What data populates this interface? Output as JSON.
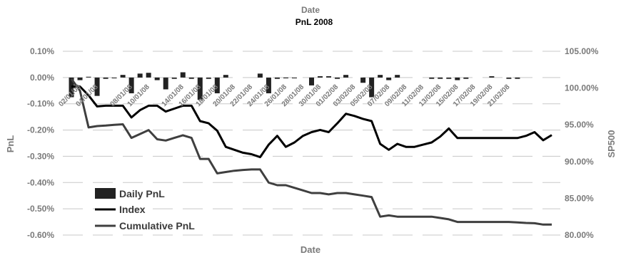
{
  "chart_data": {
    "type": "bar+line",
    "title": "PnL 2008",
    "top_label": "Date",
    "xlabel": "Date",
    "ylabel_left": "PnL",
    "ylabel_right": "SP500",
    "ylim_left": [
      -0.6,
      0.1
    ],
    "ylim_right": [
      80.0,
      105.0
    ],
    "left_ticks": [
      "0.10%",
      "0.00%",
      "-0.10%",
      "-0.20%",
      "-0.30%",
      "-0.40%",
      "-0.50%",
      "-0.60%"
    ],
    "left_tick_values": [
      0.1,
      0.0,
      -0.1,
      -0.2,
      -0.3,
      -0.4,
      -0.5,
      -0.6
    ],
    "right_ticks": [
      "105.00%",
      "100.00%",
      "95.00%",
      "90.00%",
      "85.00%",
      "80.00%"
    ],
    "right_tick_values": [
      105,
      100,
      95,
      90,
      85,
      80
    ],
    "x_ticks": [
      "02/01/08",
      "04/01/08",
      "08/01/08",
      "10/01/08",
      "14/01/08",
      "16/01/08",
      "18/01/08",
      "20/01/08",
      "22/01/08",
      "24/01/08",
      "26/01/08",
      "28/01/08",
      "30/01/08",
      "01/02/08",
      "03/02/08",
      "05/02/08",
      "07/02/08",
      "09/02/08",
      "11/02/08",
      "13/02/08",
      "15/02/08",
      "17/02/08",
      "19/02/08",
      "21/02/08"
    ],
    "x_tick_days": [
      2,
      4,
      8,
      10,
      14,
      16,
      18,
      20,
      22,
      24,
      26,
      28,
      30,
      32,
      34,
      36,
      38,
      40,
      42,
      44,
      46,
      48,
      50,
      52
    ],
    "grid": true,
    "legend_position": "bottom-left",
    "legend": [
      "Daily PnL",
      "Index",
      "Cumulative PnL"
    ],
    "colors": {
      "bars": "#222222",
      "index": "#000000",
      "cumulative": "#3f3f3f",
      "grid": "#c8c8c8",
      "axis_text": "#7a7a7a"
    },
    "series": [
      {
        "name": "Daily PnL",
        "axis": "left",
        "type": "bar",
        "points": [
          [
            2,
            -0.075
          ],
          [
            3,
            -0.01
          ],
          [
            4,
            0.003
          ],
          [
            5,
            -0.07
          ],
          [
            6,
            -0.005
          ],
          [
            7,
            -0.003
          ],
          [
            8,
            0.01
          ],
          [
            9,
            -0.06
          ],
          [
            10,
            0.015
          ],
          [
            11,
            0.018
          ],
          [
            12,
            -0.01
          ],
          [
            13,
            -0.045
          ],
          [
            14,
            -0.005
          ],
          [
            15,
            0.02
          ],
          [
            16,
            -0.005
          ],
          [
            17,
            -0.085
          ],
          [
            18,
            -0.005
          ],
          [
            19,
            -0.06
          ],
          [
            20,
            0.01
          ],
          [
            24,
            0.015
          ],
          [
            25,
            -0.06
          ],
          [
            26,
            -0.005
          ],
          [
            27,
            -0.003
          ],
          [
            28,
            -0.003
          ],
          [
            30,
            -0.03
          ],
          [
            31,
            0.005
          ],
          [
            32,
            0.005
          ],
          [
            33,
            -0.005
          ],
          [
            34,
            0.01
          ],
          [
            36,
            -0.02
          ],
          [
            37,
            -0.075
          ],
          [
            38,
            0.01
          ],
          [
            39,
            -0.01
          ],
          [
            40,
            0.01
          ],
          [
            44,
            -0.005
          ],
          [
            45,
            -0.005
          ],
          [
            46,
            -0.005
          ],
          [
            47,
            -0.01
          ],
          [
            48,
            -0.005
          ],
          [
            51,
            0.005
          ],
          [
            53,
            -0.005
          ],
          [
            54,
            -0.005
          ]
        ]
      },
      {
        "name": "Index",
        "axis": "right",
        "type": "line",
        "points": [
          [
            2,
            100.2
          ],
          [
            3,
            100.2
          ],
          [
            4,
            99.0
          ],
          [
            5,
            97.5
          ],
          [
            6,
            97.6
          ],
          [
            7,
            97.6
          ],
          [
            8,
            97.6
          ],
          [
            9,
            96.0
          ],
          [
            10,
            97.0
          ],
          [
            11,
            97.6
          ],
          [
            12,
            97.6
          ],
          [
            13,
            96.8
          ],
          [
            14,
            97.2
          ],
          [
            15,
            97.6
          ],
          [
            16,
            97.6
          ],
          [
            17,
            95.5
          ],
          [
            18,
            95.2
          ],
          [
            19,
            94.2
          ],
          [
            20,
            92.0
          ],
          [
            21,
            91.6
          ],
          [
            22,
            91.2
          ],
          [
            23,
            91.0
          ],
          [
            24,
            90.6
          ],
          [
            25,
            92.3
          ],
          [
            26,
            93.5
          ],
          [
            27,
            92.0
          ],
          [
            28,
            92.6
          ],
          [
            29,
            93.5
          ],
          [
            30,
            94.0
          ],
          [
            31,
            94.3
          ],
          [
            32,
            94.0
          ],
          [
            33,
            95.2
          ],
          [
            34,
            96.5
          ],
          [
            35,
            96.2
          ],
          [
            36,
            95.8
          ],
          [
            37,
            95.5
          ],
          [
            38,
            92.4
          ],
          [
            39,
            91.6
          ],
          [
            40,
            92.4
          ],
          [
            41,
            92.0
          ],
          [
            42,
            92.0
          ],
          [
            43,
            92.3
          ],
          [
            44,
            92.6
          ],
          [
            45,
            93.4
          ],
          [
            46,
            94.5
          ],
          [
            47,
            93.2
          ],
          [
            48,
            93.2
          ],
          [
            49,
            93.2
          ],
          [
            50,
            93.2
          ],
          [
            51,
            93.2
          ],
          [
            52,
            93.2
          ],
          [
            53,
            93.2
          ],
          [
            54,
            93.2
          ],
          [
            55,
            93.5
          ],
          [
            56,
            94.0
          ],
          [
            57,
            92.9
          ],
          [
            58,
            93.6
          ]
        ]
      },
      {
        "name": "Cumulative PnL",
        "axis": "left",
        "type": "line",
        "points": [
          [
            2,
            -0.005
          ],
          [
            3,
            -0.05
          ],
          [
            4,
            -0.19
          ],
          [
            5,
            -0.185
          ],
          [
            6,
            -0.183
          ],
          [
            7,
            -0.18
          ],
          [
            8,
            -0.178
          ],
          [
            9,
            -0.23
          ],
          [
            10,
            -0.215
          ],
          [
            11,
            -0.2
          ],
          [
            12,
            -0.235
          ],
          [
            13,
            -0.24
          ],
          [
            14,
            -0.23
          ],
          [
            15,
            -0.22
          ],
          [
            16,
            -0.23
          ],
          [
            17,
            -0.31
          ],
          [
            18,
            -0.31
          ],
          [
            19,
            -0.365
          ],
          [
            20,
            -0.36
          ],
          [
            21,
            -0.355
          ],
          [
            22,
            -0.352
          ],
          [
            23,
            -0.35
          ],
          [
            24,
            -0.35
          ],
          [
            25,
            -0.4
          ],
          [
            26,
            -0.41
          ],
          [
            27,
            -0.41
          ],
          [
            28,
            -0.42
          ],
          [
            29,
            -0.43
          ],
          [
            30,
            -0.44
          ],
          [
            31,
            -0.44
          ],
          [
            32,
            -0.445
          ],
          [
            33,
            -0.44
          ],
          [
            34,
            -0.44
          ],
          [
            35,
            -0.445
          ],
          [
            36,
            -0.45
          ],
          [
            37,
            -0.455
          ],
          [
            38,
            -0.53
          ],
          [
            39,
            -0.525
          ],
          [
            40,
            -0.53
          ],
          [
            41,
            -0.53
          ],
          [
            42,
            -0.53
          ],
          [
            43,
            -0.53
          ],
          [
            44,
            -0.53
          ],
          [
            45,
            -0.535
          ],
          [
            46,
            -0.54
          ],
          [
            47,
            -0.55
          ],
          [
            48,
            -0.55
          ],
          [
            49,
            -0.55
          ],
          [
            50,
            -0.55
          ],
          [
            51,
            -0.55
          ],
          [
            52,
            -0.55
          ],
          [
            53,
            -0.55
          ],
          [
            54,
            -0.552
          ],
          [
            55,
            -0.554
          ],
          [
            56,
            -0.555
          ],
          [
            57,
            -0.56
          ],
          [
            58,
            -0.56
          ]
        ]
      }
    ]
  }
}
